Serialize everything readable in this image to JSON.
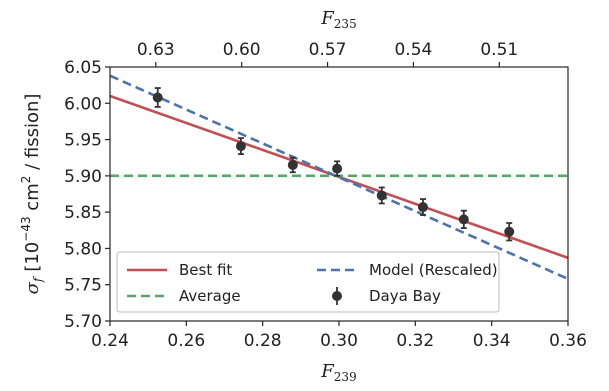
{
  "chart_data": {
    "type": "scatter",
    "xlabel": "F",
    "xlabel_sub": "239",
    "top_xlabel": "F",
    "top_xlabel_sub": "235",
    "ylabel": {
      "sigma": "σ",
      "sigma_sub": "f",
      "bracket_open": "[10",
      "exp": "−43",
      "unit": " cm",
      "unit_exp": "2",
      "rest": " / fission]"
    },
    "xlim": [
      0.24,
      0.36
    ],
    "ylim": [
      5.7,
      6.05
    ],
    "x_ticks": [
      {
        "value": 0.24,
        "label": "0.24"
      },
      {
        "value": 0.26,
        "label": "0.26"
      },
      {
        "value": 0.28,
        "label": "0.28"
      },
      {
        "value": 0.3,
        "label": "0.30"
      },
      {
        "value": 0.32,
        "label": "0.32"
      },
      {
        "value": 0.34,
        "label": "0.34"
      },
      {
        "value": 0.36,
        "label": "0.36"
      }
    ],
    "y_ticks": [
      {
        "value": 5.7,
        "label": "5.70"
      },
      {
        "value": 5.75,
        "label": "5.75"
      },
      {
        "value": 5.8,
        "label": "5.80"
      },
      {
        "value": 5.85,
        "label": "5.85"
      },
      {
        "value": 5.9,
        "label": "5.90"
      },
      {
        "value": 5.95,
        "label": "5.95"
      },
      {
        "value": 6.0,
        "label": "6.00"
      },
      {
        "value": 6.05,
        "label": "6.05"
      }
    ],
    "top_ticks": [
      {
        "value": 0.252,
        "label": "0.63"
      },
      {
        "value": 0.2745,
        "label": "0.60"
      },
      {
        "value": 0.297,
        "label": "0.57"
      },
      {
        "value": 0.3195,
        "label": "0.54"
      },
      {
        "value": 0.342,
        "label": "0.51"
      }
    ],
    "series": [
      {
        "name": "Best fit",
        "kind": "line",
        "color": "#c44e52",
        "dash": "solid",
        "x": [
          0.24,
          0.36
        ],
        "y": [
          6.01,
          5.787
        ]
      },
      {
        "name": "Model (Rescaled)",
        "kind": "line",
        "color": "#4c72b0",
        "dash": "dashed",
        "x": [
          0.24,
          0.36
        ],
        "y": [
          6.038,
          5.758
        ]
      },
      {
        "name": "Average",
        "kind": "line",
        "color": "#55a868",
        "dash": "dashed",
        "x": [
          0.24,
          0.36
        ],
        "y": [
          5.9,
          5.9
        ]
      },
      {
        "name": "Daya Bay",
        "kind": "points",
        "color": "#333333",
        "points": [
          {
            "x": 0.2525,
            "y": 6.008,
            "err": 0.013
          },
          {
            "x": 0.2743,
            "y": 5.941,
            "err": 0.011
          },
          {
            "x": 0.2879,
            "y": 5.915,
            "err": 0.01
          },
          {
            "x": 0.2995,
            "y": 5.91,
            "err": 0.01
          },
          {
            "x": 0.3112,
            "y": 5.873,
            "err": 0.011
          },
          {
            "x": 0.322,
            "y": 5.857,
            "err": 0.011
          },
          {
            "x": 0.3327,
            "y": 5.84,
            "err": 0.012
          },
          {
            "x": 0.3446,
            "y": 5.823,
            "err": 0.012
          }
        ]
      }
    ],
    "legend": {
      "position": "lower-left",
      "entries": [
        {
          "label": "Best fit",
          "series": 0
        },
        {
          "label": "Model (Rescaled)",
          "series": 1
        },
        {
          "label": "Average",
          "series": 2
        },
        {
          "label": "Daya Bay",
          "series": 3
        }
      ]
    }
  }
}
